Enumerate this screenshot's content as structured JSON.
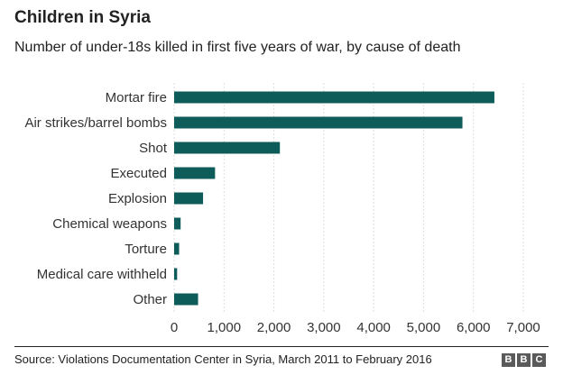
{
  "chart_data": {
    "type": "bar",
    "orientation": "horizontal",
    "title": "Children in Syria",
    "subtitle": "Number of under-18s killed in first five years of war, by cause of death",
    "categories": [
      "Mortar fire",
      "Air strikes/barrel bombs",
      "Shot",
      "Executed",
      "Explosion",
      "Chemical weapons",
      "Torture",
      "Medical care withheld",
      "Other"
    ],
    "values": [
      6420,
      5780,
      2120,
      820,
      580,
      130,
      100,
      60,
      480
    ],
    "xlim": [
      0,
      7000
    ],
    "xticks": [
      0,
      1000,
      2000,
      3000,
      4000,
      5000,
      6000,
      7000
    ],
    "xtick_labels": [
      "0",
      "1,000",
      "2,000",
      "3,000",
      "4,000",
      "5,000",
      "6,000",
      "7,000"
    ],
    "grid": true,
    "bar_color": "#0d5c5a",
    "grid_color": "#dddddd",
    "source": "Source: Violations Documentation Center in Syria, March 2011 to February 2016"
  },
  "logo": {
    "letters": [
      "B",
      "B",
      "C"
    ]
  }
}
